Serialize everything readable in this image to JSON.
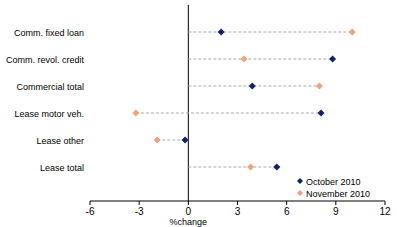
{
  "chart_data": {
    "type": "dot",
    "orientation": "horizontal",
    "categories": [
      "Comm. fixed loan",
      "Comm. revol. credit",
      "Commercial total",
      "Lease motor veh.",
      "Lease other",
      "Lease total"
    ],
    "series": [
      {
        "name": "October 2010",
        "color": "#14206b",
        "marker": "diamond",
        "values": [
          2.0,
          8.8,
          3.9,
          8.1,
          -0.2,
          5.4
        ]
      },
      {
        "name": "November 2010",
        "color": "#f2a27e",
        "marker": "diamond",
        "values": [
          10.0,
          3.4,
          8.0,
          -3.2,
          -1.9,
          3.8
        ]
      }
    ],
    "x_label": "%change",
    "xlim": [
      -6,
      12
    ],
    "xticks": [
      -6,
      -3,
      0,
      3,
      6,
      9,
      12
    ],
    "legend": "lower right",
    "grid": true
  }
}
